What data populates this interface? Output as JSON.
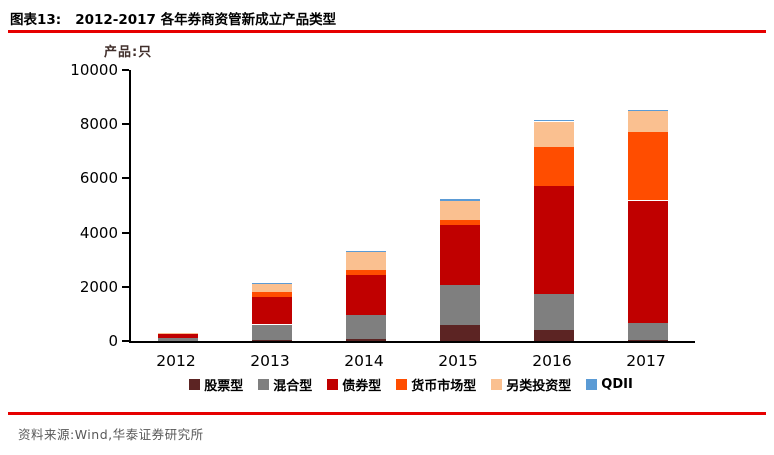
{
  "header": {
    "figure_label": "图表13:",
    "title": "2012-2017 各年券商资管新成立产品类型"
  },
  "chart": {
    "unit_label": "产品:只"
  },
  "chart_data": {
    "type": "bar",
    "stacked": true,
    "title": "2012-2017 各年券商资管新成立产品类型",
    "ylabel": "产品:只",
    "ylim": [
      0,
      10000
    ],
    "yticks": [
      0,
      2000,
      4000,
      6000,
      8000,
      10000
    ],
    "grid": false,
    "legend_position": "bottom",
    "categories": [
      "2012",
      "2013",
      "2014",
      "2015",
      "2016",
      "2017"
    ],
    "series": [
      {
        "name": "股票型",
        "color": "#5c2423",
        "values": [
          10,
          50,
          90,
          580,
          400,
          30
        ]
      },
      {
        "name": "混合型",
        "color": "#7f7f7f",
        "values": [
          110,
          570,
          880,
          1500,
          1350,
          650
        ]
      },
      {
        "name": "债券型",
        "color": "#c00000",
        "values": [
          140,
          990,
          1480,
          2200,
          3980,
          4520
        ]
      },
      {
        "name": "货币市场型",
        "color": "#ff4d00",
        "values": [
          0,
          180,
          170,
          180,
          1440,
          2520
        ]
      },
      {
        "name": "另类投资型",
        "color": "#fac090",
        "values": [
          20,
          310,
          680,
          700,
          930,
          760
        ]
      },
      {
        "name": "QDII",
        "color": "#5b9bd5",
        "values": [
          0,
          10,
          30,
          60,
          50,
          40
        ]
      }
    ]
  },
  "footer": {
    "source": "资料来源:Wind,华泰证券研究所"
  },
  "colors": {
    "accent_red": "#e60000",
    "axis": "#000000",
    "source_text": "#595959"
  }
}
